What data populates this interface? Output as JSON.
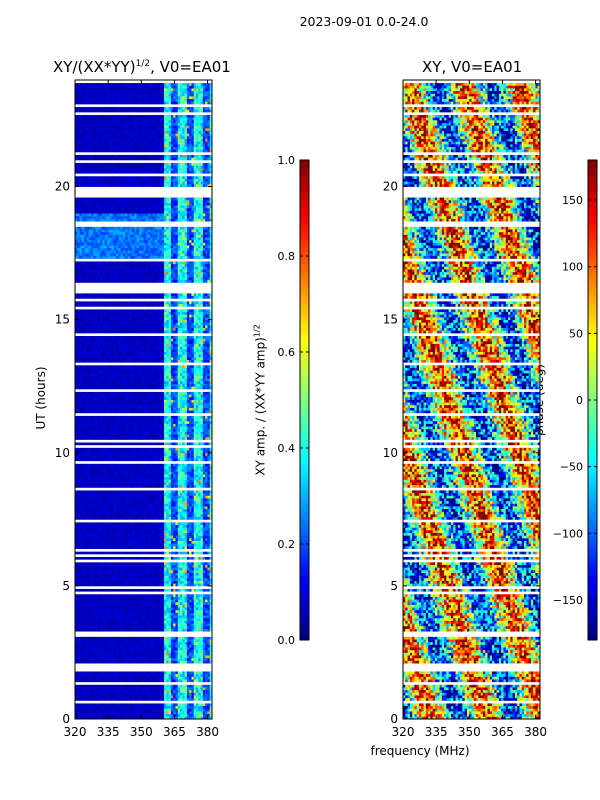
{
  "figure": {
    "suptitle": "2023-09-01 0.0-24.0",
    "xlabel": "frequency (MHz)",
    "ylabel": "UT (hours)"
  },
  "colorbars": [
    {
      "label": "XY amp. / (XX*YY amp)",
      "label_sup": "1/2",
      "ticks": [
        0.0,
        0.2,
        0.4,
        0.6,
        0.8,
        1.0
      ],
      "tick_labels": [
        "0.0",
        "0.2",
        "0.4",
        "0.6",
        "0.8",
        "1.0"
      ],
      "range": [
        0,
        1
      ],
      "colormap": "jet"
    },
    {
      "label": "phase (deg)",
      "ticks": [
        -150,
        -100,
        -50,
        0,
        50,
        100,
        150
      ],
      "tick_labels": [
        "−150",
        "−100",
        "−50",
        "0",
        "50",
        "100",
        "150"
      ],
      "range": [
        -180,
        180
      ],
      "colormap": "jet"
    }
  ],
  "chart_data": [
    {
      "type": "heatmap",
      "title_main": "XY/(XX*YY)",
      "title_sup": "1/2",
      "title_rest": ", V0=EA01",
      "xlabel": "frequency (MHz)",
      "ylabel": "UT (hours)",
      "xlim": [
        320,
        382
      ],
      "ylim": [
        0,
        24
      ],
      "xticks": [
        320,
        335,
        350,
        365,
        380
      ],
      "yticks": [
        0,
        5,
        10,
        15,
        20
      ],
      "colorbar_range": [
        0,
        1
      ],
      "description_values": {
        "typical_low_freq_amp": 0.05,
        "typical_high_freq_amp": 0.35
      }
    },
    {
      "type": "heatmap",
      "title_main": "XY, V0=EA01",
      "xlabel": "frequency (MHz)",
      "ylabel": "",
      "xlim": [
        320,
        382
      ],
      "ylim": [
        0,
        24
      ],
      "xticks": [
        320,
        335,
        350,
        365,
        380
      ],
      "yticks": [
        0,
        5,
        10,
        15,
        20
      ],
      "colorbar_range": [
        -180,
        180
      ]
    }
  ],
  "colors": {
    "frame": "#000000",
    "background": "#ffffff",
    "flag": "#ffffff"
  }
}
